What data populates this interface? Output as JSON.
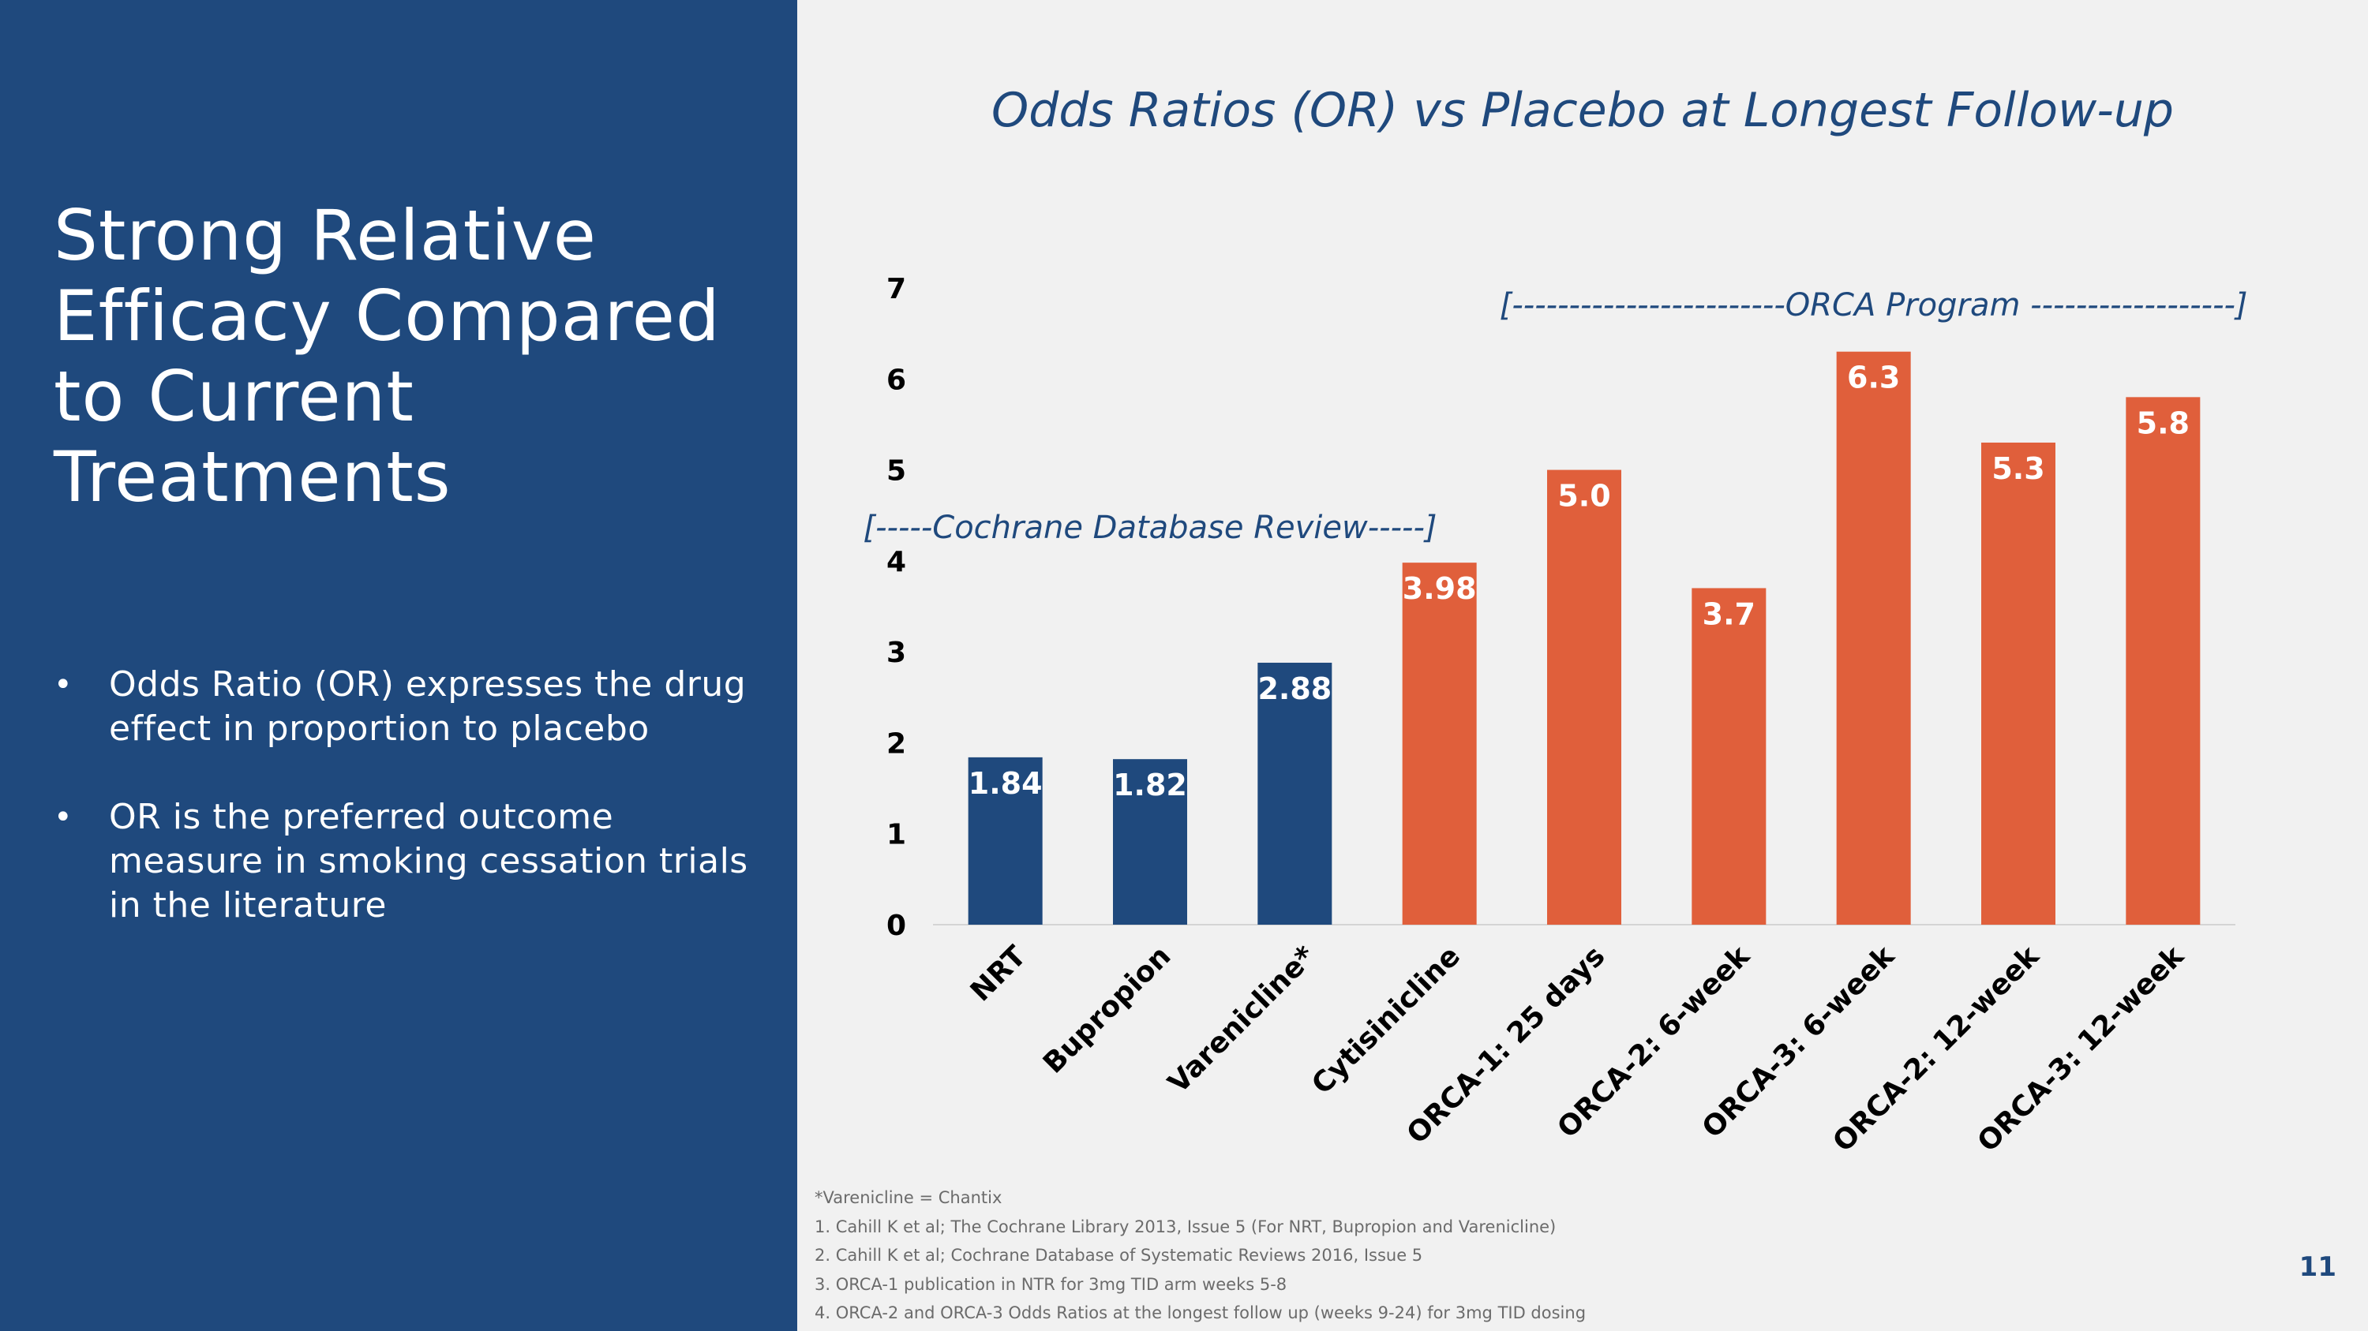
{
  "slide": {
    "title": "Strong Relative Efficacy Compared to Current Treatments",
    "bullets": [
      "Odds Ratio (OR) expresses the drug effect in proportion to placebo",
      "OR is the preferred outcome measure in smoking cessation trials in the literature"
    ],
    "bullet_symbol": "•",
    "page_number": "11"
  },
  "colors": {
    "panel_blue": "#1f497d",
    "bar_blue": "#1f497d",
    "bar_orange": "#e05f3b",
    "background": "#f1f1f1"
  },
  "chart_data": {
    "type": "bar",
    "title": "Odds Ratios (OR) vs Placebo at Longest Follow-up",
    "xlabel": "",
    "ylabel": "",
    "ylim": [
      0,
      7
    ],
    "yticks": [
      "0",
      "1",
      "2",
      "3",
      "4",
      "5",
      "6",
      "7"
    ],
    "grid": false,
    "categories": [
      "NRT",
      "Bupropion",
      "Varenicline*",
      "Cytisinicline",
      "ORCA-1: 25 days",
      "ORCA-2: 6-week",
      "ORCA-3: 6-week",
      "ORCA-2: 12-week",
      "ORCA-3: 12-week"
    ],
    "values": [
      1.84,
      1.82,
      2.88,
      3.98,
      5.0,
      3.7,
      6.3,
      5.3,
      5.8
    ],
    "value_labels": [
      "1.84",
      "1.82",
      "2.88",
      "3.98",
      "5.0",
      "3.7",
      "6.3",
      "5.3",
      "5.8"
    ],
    "bar_colors": [
      "#1f497d",
      "#1f497d",
      "#1f497d",
      "#e05f3b",
      "#e05f3b",
      "#e05f3b",
      "#e05f3b",
      "#e05f3b",
      "#e05f3b"
    ],
    "annotations": [
      {
        "text": "[-----Cochrane Database Review-----]",
        "spans": [
          "NRT",
          "Varenicline*"
        ]
      },
      {
        "text": "[------------------------ORCA Program ------------------]",
        "spans": [
          "ORCA-1: 25 days",
          "ORCA-3: 12-week"
        ]
      }
    ]
  },
  "footnotes": [
    "*Varenicline = Chantix",
    "1.  Cahill K et al; The Cochrane Library 2013, Issue 5 (For NRT, Bupropion and Varenicline)",
    "2.  Cahill K et al; Cochrane Database of Systematic Reviews 2016, Issue 5",
    "3.  ORCA-1 publication in NTR for 3mg TID arm  weeks  5-8",
    "4.  ORCA-2 and ORCA-3  Odds Ratios at the longest follow up (weeks 9-24) for 3mg TID dosing"
  ]
}
